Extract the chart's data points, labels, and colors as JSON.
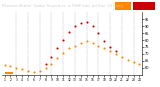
{
  "title": "Milwaukee Weather  Outdoor Temperature  vs THSW Index  per Hour  (24 Hours)",
  "hours": [
    1,
    2,
    3,
    4,
    5,
    6,
    7,
    8,
    9,
    10,
    11,
    12,
    13,
    14,
    15,
    16,
    17,
    18,
    19,
    20,
    21,
    22,
    23,
    24
  ],
  "temp": [
    62,
    61,
    60,
    59,
    58,
    57,
    58,
    60,
    63,
    67,
    71,
    74,
    76,
    78,
    79,
    78,
    76,
    74,
    72,
    70,
    68,
    66,
    64,
    63
  ],
  "thsw": [
    null,
    null,
    null,
    null,
    null,
    null,
    null,
    63,
    68,
    74,
    80,
    86,
    90,
    92,
    93,
    90,
    85,
    79,
    75,
    72,
    null,
    null,
    null,
    null
  ],
  "temp_color": "#ff8800",
  "thsw_color": "#cc0000",
  "bg_color": "#ffffff",
  "header_bg": "#222222",
  "header_text_color": "#cccccc",
  "grid_color": "#aaaaaa",
  "yticks": [
    60,
    65,
    70,
    75,
    80,
    85,
    90,
    95
  ],
  "ylim": [
    55,
    100
  ],
  "xlim": [
    0.5,
    24.5
  ],
  "marker_size": 1.5,
  "figsize": [
    1.6,
    0.87
  ],
  "dpi": 100,
  "grid_hours": [
    3,
    5,
    7,
    9,
    11,
    13,
    15,
    17,
    19,
    21,
    23
  ]
}
